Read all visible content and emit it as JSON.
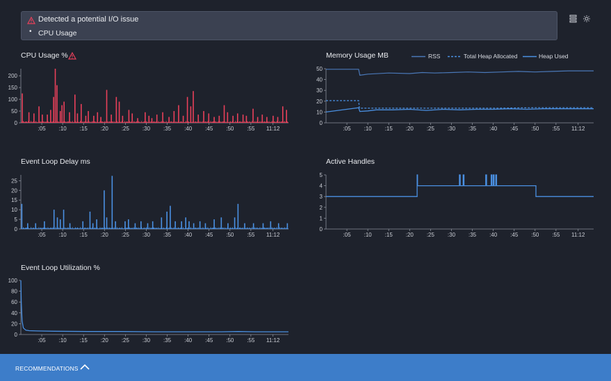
{
  "alert": {
    "title": "Detected a potential I/O issue",
    "items": [
      "CPU Usage"
    ]
  },
  "footer": {
    "label": "RECOMMENDATIONS"
  },
  "icons": {
    "alert": "warning-triangle-icon",
    "list": "list-icon",
    "theme": "sun-icon",
    "chevron": "chevron-up-icon"
  },
  "colors": {
    "cpu": "#e8405a",
    "blue": "#4a90e2",
    "rss": "#4a78b8",
    "warning": "#e8405a"
  },
  "x_ticks": [
    ":05",
    ":10",
    ":15",
    ":20",
    ":25",
    ":30",
    ":35",
    ":40",
    ":45",
    ":50",
    ":55",
    "11:12"
  ],
  "chart_data": [
    {
      "id": "cpu",
      "type": "bar",
      "title": "CPU Usage %",
      "ylim": [
        0,
        230
      ],
      "yticks": [
        0,
        50,
        100,
        150,
        200
      ],
      "spikes": [
        [
          0.2,
          125
        ],
        [
          1.8,
          45
        ],
        [
          3,
          40
        ],
        [
          4.2,
          70
        ],
        [
          5,
          35
        ],
        [
          6.2,
          35
        ],
        [
          7,
          55
        ],
        [
          7.7,
          110
        ],
        [
          8.1,
          230
        ],
        [
          8.5,
          160
        ],
        [
          9.3,
          50
        ],
        [
          9.7,
          75
        ],
        [
          10.2,
          90
        ],
        [
          11.5,
          45
        ],
        [
          12.8,
          120
        ],
        [
          13.4,
          40
        ],
        [
          14.3,
          80
        ],
        [
          15.4,
          30
        ],
        [
          16,
          50
        ],
        [
          17.3,
          30
        ],
        [
          18.2,
          45
        ],
        [
          19,
          25
        ],
        [
          20.4,
          140
        ],
        [
          21.5,
          35
        ],
        [
          22.7,
          110
        ],
        [
          23.4,
          90
        ],
        [
          24.2,
          30
        ],
        [
          25.7,
          55
        ],
        [
          26.5,
          40
        ],
        [
          27.8,
          20
        ],
        [
          29.6,
          45
        ],
        [
          30.5,
          30
        ],
        [
          31.2,
          20
        ],
        [
          32.4,
          35
        ],
        [
          33.8,
          45
        ],
        [
          35.3,
          25
        ],
        [
          36.5,
          50
        ],
        [
          37.6,
          75
        ],
        [
          38.7,
          30
        ],
        [
          39.7,
          110
        ],
        [
          40.5,
          70
        ],
        [
          41.1,
          135
        ],
        [
          42.3,
          35
        ],
        [
          43.6,
          50
        ],
        [
          44.8,
          40
        ],
        [
          46.1,
          25
        ],
        [
          47.3,
          30
        ],
        [
          48.5,
          75
        ],
        [
          49.3,
          45
        ],
        [
          50.6,
          30
        ],
        [
          51.7,
          40
        ],
        [
          53,
          35
        ],
        [
          53.8,
          30
        ],
        [
          55.4,
          60
        ],
        [
          56.5,
          25
        ],
        [
          57.6,
          35
        ],
        [
          58.7,
          25
        ],
        [
          60.2,
          30
        ],
        [
          61.3,
          25
        ],
        [
          62.5,
          70
        ],
        [
          63.4,
          55
        ]
      ]
    },
    {
      "id": "mem",
      "type": "line",
      "title": "Memory Usage MB",
      "ylim": [
        0,
        50
      ],
      "yticks": [
        0,
        10,
        20,
        30,
        40,
        50
      ],
      "series": [
        {
          "name": "RSS",
          "points": [
            [
              0,
              49.5
            ],
            [
              7.8,
              49.5
            ],
            [
              8.1,
              44
            ],
            [
              10,
              45
            ],
            [
              15,
              46
            ],
            [
              20,
              45.5
            ],
            [
              23,
              46.5
            ],
            [
              26,
              46
            ],
            [
              30,
              46.5
            ],
            [
              34,
              47
            ],
            [
              38,
              46.5
            ],
            [
              42,
              47
            ],
            [
              46,
              47.5
            ],
            [
              50,
              47
            ],
            [
              54,
              47.5
            ],
            [
              58,
              48
            ],
            [
              62,
              48
            ],
            [
              64,
              48
            ]
          ]
        },
        {
          "name": "Total Heap Allocated",
          "points": [
            [
              0,
              20.5
            ],
            [
              7.8,
              20.5
            ],
            [
              8,
              13.5
            ],
            [
              10,
              13.5
            ],
            [
              20,
              13.5
            ],
            [
              30,
              13.5
            ],
            [
              40,
              13.5
            ],
            [
              50,
              14
            ],
            [
              64,
              14
            ]
          ]
        },
        {
          "name": "Heap Used",
          "points": [
            [
              0,
              10
            ],
            [
              7.8,
              14
            ],
            [
              8.1,
              10.5
            ],
            [
              10,
              11
            ],
            [
              12,
              12
            ],
            [
              16,
              12
            ],
            [
              20,
              12.5
            ],
            [
              24,
              11.5
            ],
            [
              28,
              12.5
            ],
            [
              32,
              12
            ],
            [
              36,
              12.5
            ],
            [
              40,
              12.5
            ],
            [
              44,
              13
            ],
            [
              48,
              12.5
            ],
            [
              52,
              13
            ],
            [
              56,
              13
            ],
            [
              60,
              13
            ],
            [
              64,
              13
            ]
          ]
        }
      ]
    },
    {
      "id": "eld",
      "type": "bar",
      "title": "Event Loop Delay ms",
      "ylim": [
        0,
        28
      ],
      "yticks": [
        0,
        5,
        10,
        15,
        20,
        25
      ],
      "spikes": [
        [
          0.1,
          13
        ],
        [
          1.5,
          3
        ],
        [
          3.4,
          3
        ],
        [
          5.5,
          4
        ],
        [
          7.8,
          10
        ],
        [
          8.6,
          6
        ],
        [
          9.3,
          5
        ],
        [
          10.1,
          10
        ],
        [
          11.6,
          3
        ],
        [
          14.7,
          4
        ],
        [
          16.4,
          9
        ],
        [
          17.1,
          3
        ],
        [
          18,
          5
        ],
        [
          19.8,
          20
        ],
        [
          20.4,
          6
        ],
        [
          21.7,
          27.5
        ],
        [
          22.5,
          4
        ],
        [
          24.8,
          4
        ],
        [
          25.6,
          5
        ],
        [
          27.2,
          3
        ],
        [
          28.6,
          4
        ],
        [
          30.2,
          3
        ],
        [
          31.4,
          4
        ],
        [
          33.5,
          6
        ],
        [
          34.8,
          9
        ],
        [
          35.6,
          12
        ],
        [
          36.8,
          4
        ],
        [
          38.3,
          4
        ],
        [
          39.3,
          6
        ],
        [
          40.1,
          4
        ],
        [
          41.2,
          3
        ],
        [
          42.7,
          4
        ],
        [
          44,
          3
        ],
        [
          46.1,
          5
        ],
        [
          47.8,
          6
        ],
        [
          49.4,
          3
        ],
        [
          51,
          6
        ],
        [
          51.8,
          13
        ],
        [
          53.4,
          3
        ],
        [
          55.5,
          3
        ],
        [
          57.8,
          3
        ],
        [
          59.6,
          4
        ],
        [
          61.5,
          3
        ],
        [
          63.6,
          3
        ]
      ]
    },
    {
      "id": "handles",
      "type": "line",
      "title": "Active Handles",
      "ylim": [
        0,
        5
      ],
      "yticks": [
        0,
        1,
        2,
        3,
        4,
        5
      ],
      "series": [
        {
          "name": "Active Handles",
          "points": [
            [
              0,
              3
            ],
            [
              21.8,
              3
            ],
            [
              21.8,
              5
            ],
            [
              21.9,
              5
            ],
            [
              21.9,
              4
            ],
            [
              31.9,
              4
            ],
            [
              31.9,
              5
            ],
            [
              32.1,
              5
            ],
            [
              32.1,
              4
            ],
            [
              32.8,
              4
            ],
            [
              32.8,
              5
            ],
            [
              33,
              5
            ],
            [
              33,
              4
            ],
            [
              38.2,
              4
            ],
            [
              38.2,
              5
            ],
            [
              38.4,
              5
            ],
            [
              38.4,
              4
            ],
            [
              39.5,
              4
            ],
            [
              39.5,
              5
            ],
            [
              39.7,
              5
            ],
            [
              39.7,
              4
            ],
            [
              40,
              4
            ],
            [
              40,
              5
            ],
            [
              40.2,
              5
            ],
            [
              40.2,
              4
            ],
            [
              40.6,
              4
            ],
            [
              40.6,
              5
            ],
            [
              40.8,
              5
            ],
            [
              40.8,
              4
            ],
            [
              50.2,
              4
            ],
            [
              50.2,
              3
            ],
            [
              64,
              3
            ]
          ]
        }
      ]
    },
    {
      "id": "elu",
      "type": "line",
      "title": "Event Loop Utilization %",
      "ylim": [
        0,
        100
      ],
      "yticks": [
        0,
        20,
        40,
        60,
        80,
        100
      ],
      "series": [
        {
          "name": "Event Loop Utilization",
          "points": [
            [
              0,
              100
            ],
            [
              0.1,
              60
            ],
            [
              0.3,
              25
            ],
            [
              0.6,
              12
            ],
            [
              1.2,
              8
            ],
            [
              2,
              7
            ],
            [
              4,
              6.5
            ],
            [
              8,
              6
            ],
            [
              16,
              5.5
            ],
            [
              24,
              5.5
            ],
            [
              32,
              5
            ],
            [
              40,
              5
            ],
            [
              48,
              5
            ],
            [
              52,
              5.5
            ],
            [
              56,
              5
            ],
            [
              64,
              5
            ]
          ]
        }
      ]
    }
  ]
}
